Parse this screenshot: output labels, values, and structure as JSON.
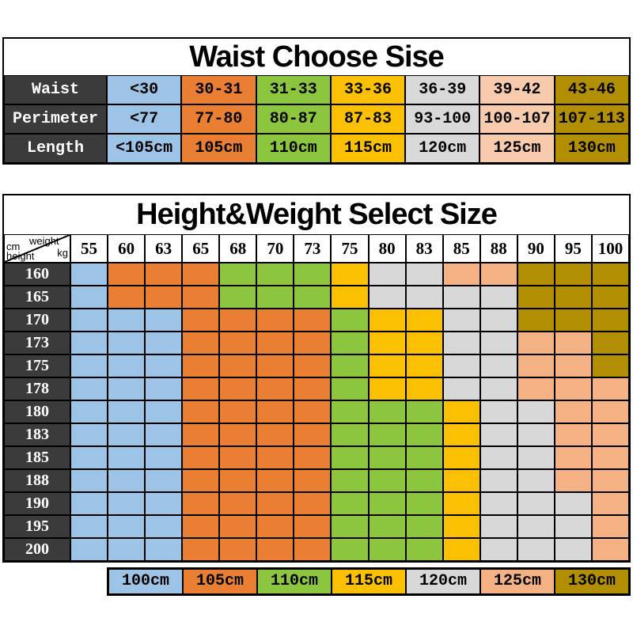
{
  "colors": {
    "row_header_bg": "#3B3B3B",
    "row_header_text": "#FFFFFF",
    "border": "#000000",
    "background": "#FFFFFF"
  },
  "chart_data": [
    {
      "type": "table",
      "title": "Waist Choose Sise",
      "row_headers": [
        "Waist",
        "Perimeter",
        "Length"
      ],
      "rows": [
        [
          "<30",
          "30-31",
          "31-33",
          "33-36",
          "36-39",
          "39-42",
          "43-46"
        ],
        [
          "<77",
          "77-80",
          "80-87",
          "87-83",
          "93-100",
          "100-107",
          "107-113"
        ],
        [
          "<105cm",
          "105cm",
          "110cm",
          "115cm",
          "120cm",
          "125cm",
          "130cm"
        ]
      ],
      "column_colors": [
        "#9DC3E6",
        "#EA7E33",
        "#8CC63E",
        "#FCC003",
        "#D9D9D9",
        "#F8CBAD",
        "#B28E02"
      ]
    },
    {
      "type": "heatmap",
      "title": "Height&Weight Select Size",
      "x_axis": {
        "label": "weight",
        "unit": "kg",
        "ticks": [
          "55",
          "60",
          "63",
          "65",
          "68",
          "70",
          "73",
          "75",
          "80",
          "83",
          "85",
          "88",
          "90",
          "95",
          "100"
        ]
      },
      "y_axis": {
        "label": "height",
        "unit": "cm",
        "ticks": [
          "160",
          "165",
          "170",
          "173",
          "175",
          "178",
          "180",
          "183",
          "185",
          "188",
          "190",
          "195",
          "200"
        ]
      },
      "cells": [
        [
          "100cm",
          "105cm",
          "105cm",
          "105cm",
          "110cm",
          "110cm",
          "110cm",
          "115cm",
          "120cm",
          "120cm",
          "125cm",
          "125cm",
          "130cm",
          "130cm",
          "130cm"
        ],
        [
          "100cm",
          "105cm",
          "105cm",
          "105cm",
          "110cm",
          "110cm",
          "110cm",
          "115cm",
          "120cm",
          "120cm",
          "120cm",
          "120cm",
          "130cm",
          "130cm",
          "130cm"
        ],
        [
          "100cm",
          "100cm",
          "100cm",
          "105cm",
          "105cm",
          "105cm",
          "105cm",
          "110cm",
          "115cm",
          "115cm",
          "120cm",
          "120cm",
          "130cm",
          "130cm",
          "130cm"
        ],
        [
          "100cm",
          "100cm",
          "100cm",
          "105cm",
          "105cm",
          "105cm",
          "105cm",
          "110cm",
          "115cm",
          "115cm",
          "120cm",
          "120cm",
          "125cm",
          "125cm",
          "130cm"
        ],
        [
          "100cm",
          "100cm",
          "100cm",
          "105cm",
          "105cm",
          "105cm",
          "105cm",
          "110cm",
          "115cm",
          "115cm",
          "120cm",
          "120cm",
          "125cm",
          "125cm",
          "130cm"
        ],
        [
          "100cm",
          "100cm",
          "100cm",
          "105cm",
          "105cm",
          "105cm",
          "105cm",
          "110cm",
          "115cm",
          "115cm",
          "120cm",
          "120cm",
          "125cm",
          "125cm",
          "125cm"
        ],
        [
          "100cm",
          "100cm",
          "100cm",
          "105cm",
          "105cm",
          "105cm",
          "105cm",
          "110cm",
          "110cm",
          "110cm",
          "115cm",
          "120cm",
          "120cm",
          "125cm",
          "125cm"
        ],
        [
          "100cm",
          "100cm",
          "100cm",
          "105cm",
          "105cm",
          "105cm",
          "105cm",
          "110cm",
          "110cm",
          "110cm",
          "115cm",
          "120cm",
          "120cm",
          "125cm",
          "125cm"
        ],
        [
          "100cm",
          "100cm",
          "100cm",
          "105cm",
          "105cm",
          "105cm",
          "105cm",
          "110cm",
          "110cm",
          "110cm",
          "115cm",
          "120cm",
          "120cm",
          "125cm",
          "125cm"
        ],
        [
          "100cm",
          "100cm",
          "100cm",
          "105cm",
          "105cm",
          "105cm",
          "105cm",
          "110cm",
          "110cm",
          "110cm",
          "115cm",
          "120cm",
          "120cm",
          "125cm",
          "125cm"
        ],
        [
          "100cm",
          "100cm",
          "100cm",
          "105cm",
          "105cm",
          "105cm",
          "105cm",
          "110cm",
          "110cm",
          "110cm",
          "115cm",
          "120cm",
          "120cm",
          "120cm",
          "125cm"
        ],
        [
          "100cm",
          "100cm",
          "100cm",
          "105cm",
          "105cm",
          "105cm",
          "105cm",
          "110cm",
          "110cm",
          "110cm",
          "115cm",
          "120cm",
          "120cm",
          "120cm",
          "125cm"
        ],
        [
          "100cm",
          "100cm",
          "100cm",
          "105cm",
          "105cm",
          "105cm",
          "105cm",
          "110cm",
          "110cm",
          "110cm",
          "115cm",
          "120cm",
          "120cm",
          "120cm",
          "125cm"
        ]
      ],
      "legend": [
        {
          "size": "100cm",
          "color": "#9DC3E6"
        },
        {
          "size": "105cm",
          "color": "#EA7E33"
        },
        {
          "size": "110cm",
          "color": "#8CC63E"
        },
        {
          "size": "115cm",
          "color": "#FCC003"
        },
        {
          "size": "120cm",
          "color": "#D8D8D8"
        },
        {
          "size": "125cm",
          "color": "#F4B183"
        },
        {
          "size": "130cm",
          "color": "#B28E02"
        }
      ]
    }
  ]
}
